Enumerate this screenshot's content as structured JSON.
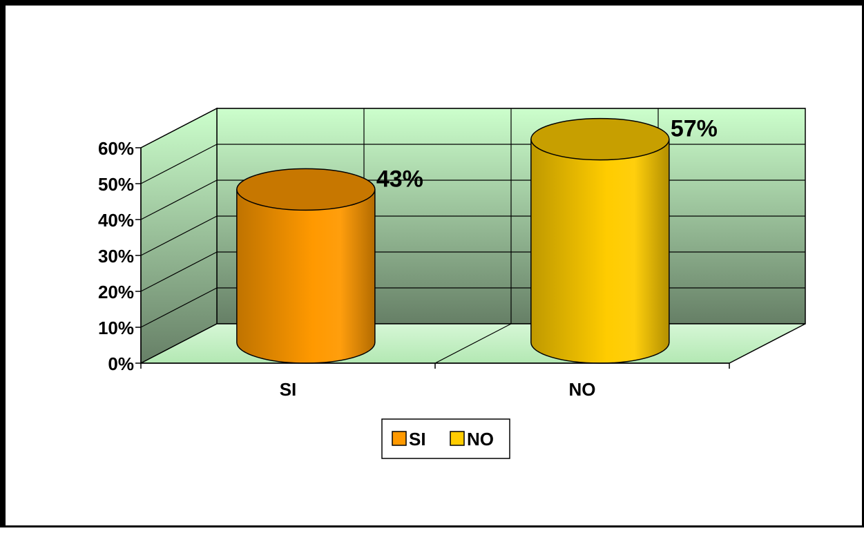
{
  "chart_data": {
    "type": "bar",
    "style": "3d-cylinder",
    "categories": [
      "SI",
      "NO"
    ],
    "values": [
      43,
      57
    ],
    "data_labels": [
      "43%",
      "57%"
    ],
    "ylim": [
      0,
      60
    ],
    "yticks": [
      0,
      10,
      20,
      30,
      40,
      50,
      60
    ],
    "ytick_labels": [
      "0%",
      "10%",
      "20%",
      "30%",
      "40%",
      "50%",
      "60%"
    ],
    "grid": true,
    "legend": {
      "placement": "bottom",
      "entries": [
        {
          "label": "SI",
          "color": "#ff9900"
        },
        {
          "label": "NO",
          "color": "#ffcc00"
        }
      ]
    },
    "colors": {
      "series": [
        "#ff9900",
        "#ffcc00"
      ],
      "wall_top": "#ccffcc",
      "wall_bottom": "#667f66",
      "floor": "#b3e8b3"
    }
  }
}
